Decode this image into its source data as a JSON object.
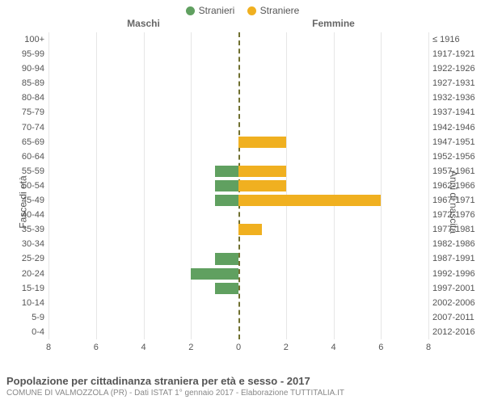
{
  "legend": {
    "male": {
      "label": "Stranieri",
      "color": "#60a060"
    },
    "female": {
      "label": "Straniere",
      "color": "#f0b020"
    }
  },
  "headers": {
    "left": "Maschi",
    "right": "Femmine"
  },
  "y_axis_left_title": "Fasce di età",
  "y_axis_right_title": "Anni di nascita",
  "x_axis": {
    "max": 8,
    "ticks": [
      8,
      6,
      4,
      2,
      0,
      2,
      4,
      6,
      8
    ]
  },
  "grid_color": "#e6e6e6",
  "center_line_color": "#707030",
  "bar_color_male": "#60a060",
  "bar_color_female": "#f0b020",
  "rows": [
    {
      "age": "100+",
      "year": "≤ 1916",
      "m": 0,
      "f": 0
    },
    {
      "age": "95-99",
      "year": "1917-1921",
      "m": 0,
      "f": 0
    },
    {
      "age": "90-94",
      "year": "1922-1926",
      "m": 0,
      "f": 0
    },
    {
      "age": "85-89",
      "year": "1927-1931",
      "m": 0,
      "f": 0
    },
    {
      "age": "80-84",
      "year": "1932-1936",
      "m": 0,
      "f": 0
    },
    {
      "age": "75-79",
      "year": "1937-1941",
      "m": 0,
      "f": 0
    },
    {
      "age": "70-74",
      "year": "1942-1946",
      "m": 0,
      "f": 0
    },
    {
      "age": "65-69",
      "year": "1947-1951",
      "m": 0,
      "f": 2
    },
    {
      "age": "60-64",
      "year": "1952-1956",
      "m": 0,
      "f": 0
    },
    {
      "age": "55-59",
      "year": "1957-1961",
      "m": 1,
      "f": 2
    },
    {
      "age": "50-54",
      "year": "1962-1966",
      "m": 1,
      "f": 2
    },
    {
      "age": "45-49",
      "year": "1967-1971",
      "m": 1,
      "f": 6
    },
    {
      "age": "40-44",
      "year": "1972-1976",
      "m": 0,
      "f": 0
    },
    {
      "age": "35-39",
      "year": "1977-1981",
      "m": 0,
      "f": 1
    },
    {
      "age": "30-34",
      "year": "1982-1986",
      "m": 0,
      "f": 0
    },
    {
      "age": "25-29",
      "year": "1987-1991",
      "m": 1,
      "f": 0
    },
    {
      "age": "20-24",
      "year": "1992-1996",
      "m": 2,
      "f": 0
    },
    {
      "age": "15-19",
      "year": "1997-2001",
      "m": 1,
      "f": 0
    },
    {
      "age": "10-14",
      "year": "2002-2006",
      "m": 0,
      "f": 0
    },
    {
      "age": "5-9",
      "year": "2007-2011",
      "m": 0,
      "f": 0
    },
    {
      "age": "0-4",
      "year": "2012-2016",
      "m": 0,
      "f": 0
    }
  ],
  "title": "Popolazione per cittadinanza straniera per età e sesso - 2017",
  "subtitle": "COMUNE DI VALMOZZOLA (PR) - Dati ISTAT 1° gennaio 2017 - Elaborazione TUTTITALIA.IT"
}
